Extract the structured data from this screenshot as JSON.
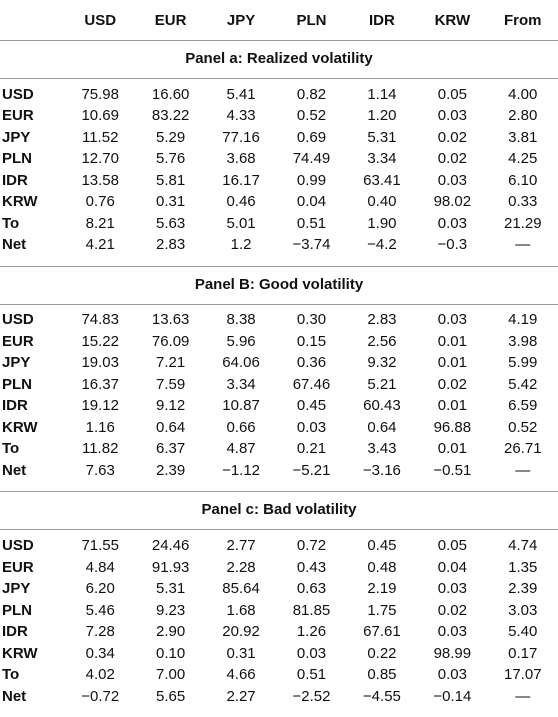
{
  "header": {
    "columns": [
      "USD",
      "EUR",
      "JPY",
      "PLN",
      "IDR",
      "KRW",
      "From"
    ]
  },
  "panels": [
    {
      "title": "Panel a: Realized volatility",
      "rows": [
        [
          "USD",
          "75.98",
          "16.60",
          "5.41",
          "0.82",
          "1.14",
          "0.05",
          "4.00"
        ],
        [
          "EUR",
          "10.69",
          "83.22",
          "4.33",
          "0.52",
          "1.20",
          "0.03",
          "2.80"
        ],
        [
          "JPY",
          "11.52",
          "5.29",
          "77.16",
          "0.69",
          "5.31",
          "0.02",
          "3.81"
        ],
        [
          "PLN",
          "12.70",
          "5.76",
          "3.68",
          "74.49",
          "3.34",
          "0.02",
          "4.25"
        ],
        [
          "IDR",
          "13.58",
          "5.81",
          "16.17",
          "0.99",
          "63.41",
          "0.03",
          "6.10"
        ],
        [
          "KRW",
          "0.76",
          "0.31",
          "0.46",
          "0.04",
          "0.40",
          "98.02",
          "0.33"
        ],
        [
          "To",
          "8.21",
          "5.63",
          "5.01",
          "0.51",
          "1.90",
          "0.03",
          "21.29"
        ],
        [
          "Net",
          "4.21",
          "2.83",
          "1.2",
          "−3.74",
          "−4.2",
          "−0.3",
          "—"
        ]
      ]
    },
    {
      "title": "Panel B: Good volatility",
      "rows": [
        [
          "USD",
          "74.83",
          "13.63",
          "8.38",
          "0.30",
          "2.83",
          "0.03",
          "4.19"
        ],
        [
          "EUR",
          "15.22",
          "76.09",
          "5.96",
          "0.15",
          "2.56",
          "0.01",
          "3.98"
        ],
        [
          "JPY",
          "19.03",
          "7.21",
          "64.06",
          "0.36",
          "9.32",
          "0.01",
          "5.99"
        ],
        [
          "PLN",
          "16.37",
          "7.59",
          "3.34",
          "67.46",
          "5.21",
          "0.02",
          "5.42"
        ],
        [
          "IDR",
          "19.12",
          "9.12",
          "10.87",
          "0.45",
          "60.43",
          "0.01",
          "6.59"
        ],
        [
          "KRW",
          "1.16",
          "0.64",
          "0.66",
          "0.03",
          "0.64",
          "96.88",
          "0.52"
        ],
        [
          "To",
          "11.82",
          "6.37",
          "4.87",
          "0.21",
          "3.43",
          "0.01",
          "26.71"
        ],
        [
          "Net",
          "7.63",
          "2.39",
          "−1.12",
          "−5.21",
          "−3.16",
          "−0.51",
          "—"
        ]
      ]
    },
    {
      "title": "Panel c: Bad volatility",
      "rows": [
        [
          "USD",
          "71.55",
          "24.46",
          "2.77",
          "0.72",
          "0.45",
          "0.05",
          "4.74"
        ],
        [
          "EUR",
          "4.84",
          "91.93",
          "2.28",
          "0.43",
          "0.48",
          "0.04",
          "1.35"
        ],
        [
          "JPY",
          "6.20",
          "5.31",
          "85.64",
          "0.63",
          "2.19",
          "0.03",
          "2.39"
        ],
        [
          "PLN",
          "5.46",
          "9.23",
          "1.68",
          "81.85",
          "1.75",
          "0.02",
          "3.03"
        ],
        [
          "IDR",
          "7.28",
          "2.90",
          "20.92",
          "1.26",
          "67.61",
          "0.03",
          "5.40"
        ],
        [
          "KRW",
          "0.34",
          "0.10",
          "0.31",
          "0.03",
          "0.22",
          "98.99",
          "0.17"
        ],
        [
          "To",
          "4.02",
          "7.00",
          "4.66",
          "0.51",
          "0.85",
          "0.03",
          "17.07"
        ],
        [
          "Net",
          "−0.72",
          "5.65",
          "2.27",
          "−2.52",
          "−4.55",
          "−0.14",
          "—"
        ]
      ]
    }
  ]
}
